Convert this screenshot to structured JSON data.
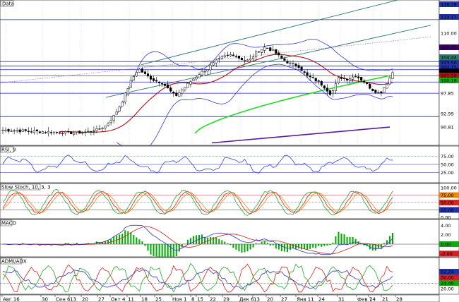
{
  "panels": {
    "price": {
      "title": "Data"
    },
    "rsi": {
      "title": "RSI, 9"
    },
    "stoch": {
      "title": "Slow Stoch, 10, 3, 3"
    },
    "macd": {
      "title": "MACD"
    },
    "adx": {
      "title": "ADMI/ADX"
    }
  },
  "price_axis": {
    "labels": [
      "116.39",
      "113.17",
      "110.00",
      "106.65",
      "104.44",
      "103.50",
      "102.75",
      "102.10",
      "101.32",
      "100.18",
      "97.85",
      "92.99",
      "90.81"
    ],
    "top_tag": "116.39"
  },
  "rsi_axis": {
    "labels": [
      "75.00",
      "50.00",
      "25.00"
    ]
  },
  "stoch_axis": {
    "labels": [
      "100.00",
      "75.00",
      "50.00",
      "25.00",
      "0.00"
    ]
  },
  "macd_axis": {
    "labels": [
      "4.00",
      "2.00",
      "0.00",
      "-2.00"
    ]
  },
  "adx_axis": {
    "labels": [
      "52.24",
      "30.00",
      "24.46",
      "20.00"
    ]
  },
  "date_axis": {
    "labels": [
      "Авг 16",
      "30",
      "Сен 6",
      "13",
      "20",
      "27",
      "Окт 4",
      "11",
      "18",
      "25",
      "Ноя 1",
      "8",
      "15",
      "22",
      "29",
      "Дек 6",
      "13",
      "20",
      "27",
      "Янв 11",
      "24",
      "31",
      "Фев 7",
      "14",
      "21",
      "28"
    ]
  },
  "colors": {
    "candle": "#000000",
    "bollinger": "#3a3ad8",
    "sma_red": "#b01010",
    "sma_green": "#22dd22",
    "trend_channel": "#2a7a6a",
    "purple_line": "#5a1a9a",
    "hline": "#2020c0",
    "rsi": "#3344dd",
    "stoch_k": "#22aa22",
    "stoch_d": "#dd2222",
    "stoch_x": "#ee8800",
    "macd": "#3333cc",
    "macd_signal": "#cc2222",
    "macd_hist": "#00aa00",
    "adx_plus": "#22aa22",
    "adx_minus": "#dd2222",
    "adx_line": "#3333cc"
  }
}
